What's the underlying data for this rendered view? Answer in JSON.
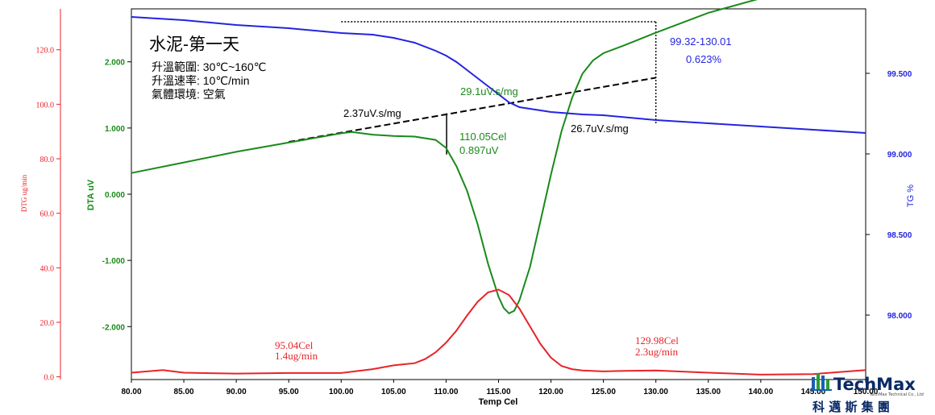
{
  "chart_data": {
    "type": "line",
    "x_axis": {
      "label": "Temp Cel",
      "range": [
        80,
        150
      ],
      "tick_labels": [
        "80.00",
        "85.00",
        "90.00",
        "95.00",
        "100.00",
        "105.00",
        "110.00",
        "115.00",
        "120.00",
        "125.00",
        "130.00",
        "135.00",
        "140.00",
        "145.00",
        "150.00"
      ]
    },
    "y_axes": {
      "dtg": {
        "label": "DTG ug/min",
        "color": "#e8232a",
        "range": [
          -1,
          135
        ],
        "tick_labels": [
          "0.0",
          "20.0",
          "40.0",
          "60.0",
          "80.0",
          "100.0",
          "120.0"
        ]
      },
      "dta": {
        "label": "DTA uV",
        "color": "#1a8a1a",
        "range": [
          -2.8,
          2.8
        ],
        "tick_labels": [
          "2.000",
          "1.000",
          "0.000",
          "-1.000",
          "-2.000"
        ]
      },
      "tg": {
        "label": "TG %",
        "color": "#2424e0",
        "range": [
          97.6,
          99.9
        ],
        "tick_labels": [
          "99.500",
          "99.000",
          "98.500",
          "98.000"
        ]
      }
    },
    "series": [
      {
        "name": "DTA",
        "axis": "dta",
        "color": "#1a8a1a",
        "x": [
          80,
          85,
          90,
          95,
          100,
          101,
          103,
          105,
          107,
          109,
          110,
          111,
          112,
          113,
          114,
          115,
          115.5,
          116,
          116.5,
          117,
          118,
          119,
          120,
          121,
          122,
          123,
          124,
          125,
          127,
          130,
          135,
          140,
          145,
          150
        ],
        "y": [
          0.32,
          0.48,
          0.64,
          0.78,
          0.92,
          0.94,
          0.9,
          0.88,
          0.87,
          0.82,
          0.7,
          0.42,
          0.05,
          -0.45,
          -1.05,
          -1.55,
          -1.72,
          -1.8,
          -1.76,
          -1.6,
          -1.1,
          -0.4,
          0.3,
          0.95,
          1.45,
          1.82,
          2.02,
          2.13,
          2.25,
          2.44,
          2.74,
          2.96,
          3.18,
          3.4
        ]
      },
      {
        "name": "TG",
        "axis": "tg",
        "color": "#2424e0",
        "x": [
          80,
          85,
          90,
          95,
          100,
          103,
          105,
          107,
          109,
          110,
          111,
          112,
          113,
          114,
          115,
          116,
          117,
          118,
          119,
          120,
          121,
          122,
          123,
          125,
          130,
          135,
          140,
          145,
          150
        ],
        "y": [
          99.85,
          99.83,
          99.8,
          99.78,
          99.75,
          99.74,
          99.72,
          99.69,
          99.64,
          99.61,
          99.57,
          99.52,
          99.47,
          99.42,
          99.37,
          99.32,
          99.29,
          99.28,
          99.27,
          99.26,
          99.255,
          99.25,
          99.245,
          99.24,
          99.21,
          99.19,
          99.17,
          99.15,
          99.13
        ]
      },
      {
        "name": "DTG",
        "axis": "dtg",
        "color": "#e8232a",
        "x": [
          80,
          83,
          85,
          90,
          95,
          100,
          103,
          105,
          107,
          108,
          109,
          110,
          111,
          112,
          113,
          114,
          115,
          116,
          117,
          118,
          119,
          120,
          121,
          122,
          123,
          125,
          127,
          130,
          135,
          140,
          145,
          150
        ],
        "y": [
          1.5,
          2.5,
          1.5,
          1.2,
          1.4,
          1.4,
          2.8,
          4.2,
          5.0,
          6.5,
          9,
          12.5,
          17,
          22.5,
          27.5,
          31,
          32,
          30,
          25,
          18.5,
          12,
          7,
          4,
          2.8,
          2.3,
          2.0,
          2.2,
          2.3,
          1.5,
          0.8,
          1.0,
          2.5
        ]
      }
    ],
    "baseline": {
      "x": [
        95,
        130
      ],
      "dta": [
        0.79,
        1.76
      ]
    },
    "tg_bracket": {
      "x": [
        100,
        130
      ],
      "tg": [
        99.82,
        99.18
      ]
    },
    "onset": {
      "x": 110.05,
      "dta": [
        0.88,
        0.6
      ]
    },
    "annotations": {
      "title": "水泥-第一天",
      "conditions": [
        "升溫範圍: 30℃~160℃",
        "升溫速率: 10℃/min",
        "氣體環境: 空氣"
      ],
      "peak_area_left": "2.37uV.s/mg",
      "peak_area_mid": "29.1uV.s/mg",
      "peak_area_right": "26.7uV.s/mg",
      "onset_temp": "110.05Cel",
      "onset_height": "0.897uV",
      "tg_range": "99.32-130.01",
      "tg_loss": "0.623%",
      "dtg_left_temp": "95.04Cel",
      "dtg_left_rate": "1.4ug/min",
      "dtg_right_temp": "129.98Cel",
      "dtg_right_rate": "2.3ug/min"
    }
  },
  "logo": {
    "brand": "TechMax",
    "subtitle": "TechMax Technical Co., Ltd",
    "chinese": "科 邁 斯 集 團"
  }
}
